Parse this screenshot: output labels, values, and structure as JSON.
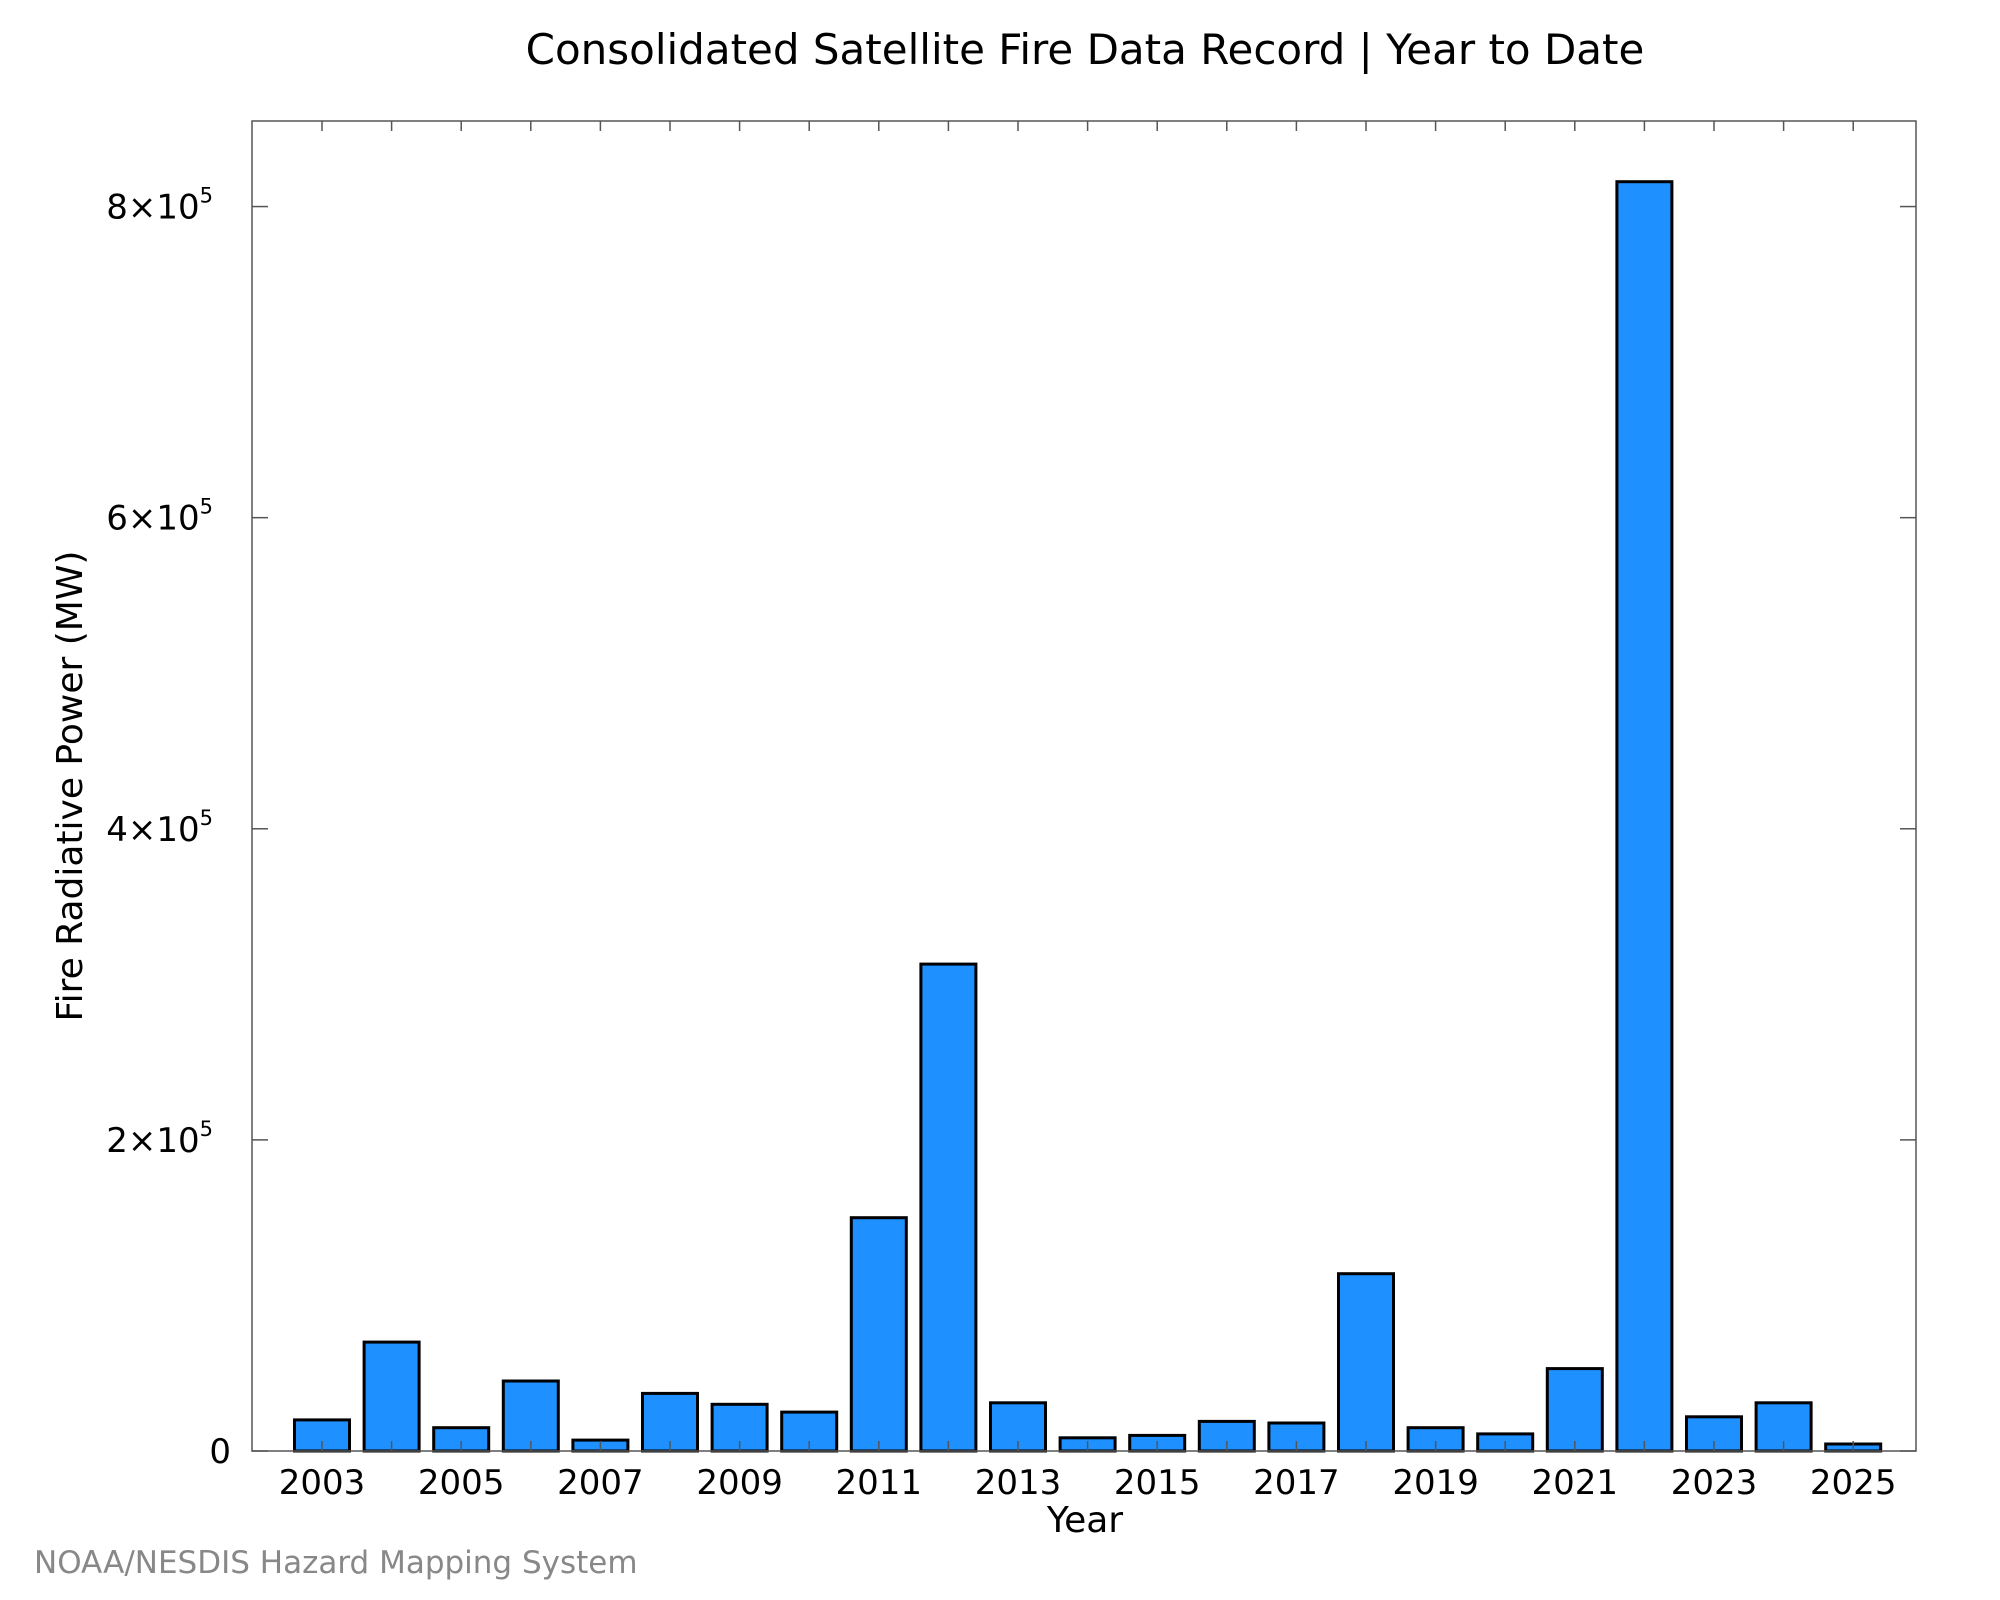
{
  "chart_data": {
    "type": "bar",
    "title": "Consolidated Satellite Fire Data Record | Year to Date",
    "xlabel": "Year",
    "ylabel": "Fire Radiative Power (MW)",
    "ylim": [
      0,
      855000
    ],
    "categories": [
      2003,
      2004,
      2005,
      2006,
      2007,
      2008,
      2009,
      2010,
      2011,
      2012,
      2013,
      2014,
      2015,
      2016,
      2017,
      2018,
      2019,
      2020,
      2021,
      2022,
      2023,
      2024,
      2025
    ],
    "values": [
      20000,
      70000,
      15000,
      45000,
      7000,
      37000,
      30000,
      25000,
      150000,
      313000,
      31000,
      8500,
      10000,
      19000,
      18000,
      114000,
      15000,
      11000,
      53000,
      816000,
      22000,
      31000,
      4500
    ],
    "x_tick_labels": [
      "2003",
      "2005",
      "2007",
      "2009",
      "2011",
      "2013",
      "2015",
      "2017",
      "2019",
      "2021",
      "2023",
      "2025"
    ],
    "y_ticks": [
      {
        "value": 0,
        "mantissa": "0",
        "exponent": ""
      },
      {
        "value": 200000,
        "mantissa": "2×10",
        "exponent": "5"
      },
      {
        "value": 400000,
        "mantissa": "4×10",
        "exponent": "5"
      },
      {
        "value": 600000,
        "mantissa": "6×10",
        "exponent": "5"
      },
      {
        "value": 800000,
        "mantissa": "8×10",
        "exponent": "5"
      }
    ],
    "bar_color": "#1e90ff",
    "grid": false,
    "legend": "none"
  },
  "credit": "NOAA/NESDIS Hazard Mapping System"
}
